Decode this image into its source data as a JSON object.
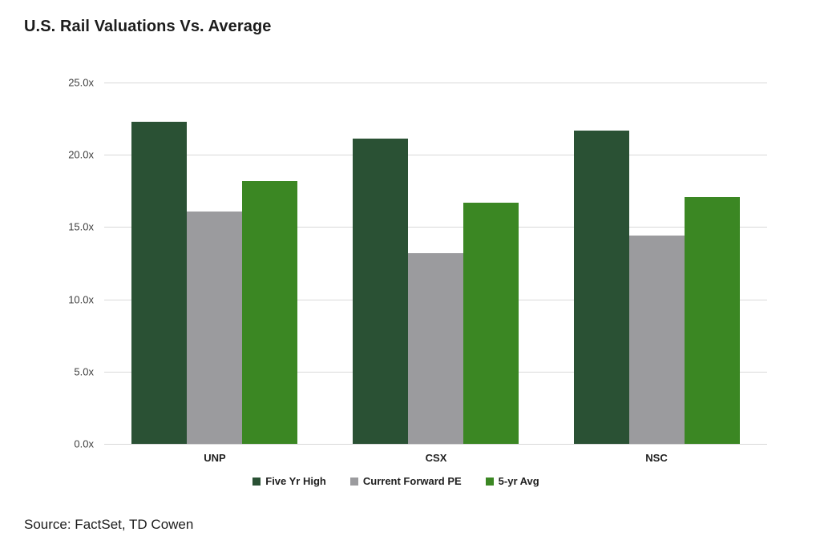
{
  "title": "U.S. Rail Valuations Vs. Average",
  "source": "Source: FactSet, TD Cowen",
  "colors": {
    "five_yr_high": "#2a5134",
    "current_forward_pe": "#9b9b9e",
    "five_yr_avg": "#3b8723",
    "gridline": "#d9d9d9",
    "title_text": "#1c1c1c",
    "tick_text": "#3f3f3f"
  },
  "chart_data": {
    "type": "bar",
    "categories": [
      "UNP",
      "CSX",
      "NSC"
    ],
    "series": [
      {
        "name": "Five Yr High",
        "color": "#2a5134",
        "values": [
          22.3,
          21.1,
          21.7
        ]
      },
      {
        "name": "Current Forward PE",
        "color": "#9b9b9e",
        "values": [
          16.1,
          13.2,
          14.4
        ]
      },
      {
        "name": "5-yr Avg",
        "color": "#3b8723",
        "values": [
          18.2,
          16.7,
          17.1
        ]
      }
    ],
    "ylim": [
      0,
      25
    ],
    "yticks": [
      {
        "value": 0,
        "label": "0.0x"
      },
      {
        "value": 5,
        "label": "5.0x"
      },
      {
        "value": 10,
        "label": "10.0x"
      },
      {
        "value": 15,
        "label": "15.0x"
      },
      {
        "value": 20,
        "label": "20.0x"
      },
      {
        "value": 25,
        "label": "25.0x"
      }
    ],
    "grid": true,
    "legend_position": "bottom"
  }
}
